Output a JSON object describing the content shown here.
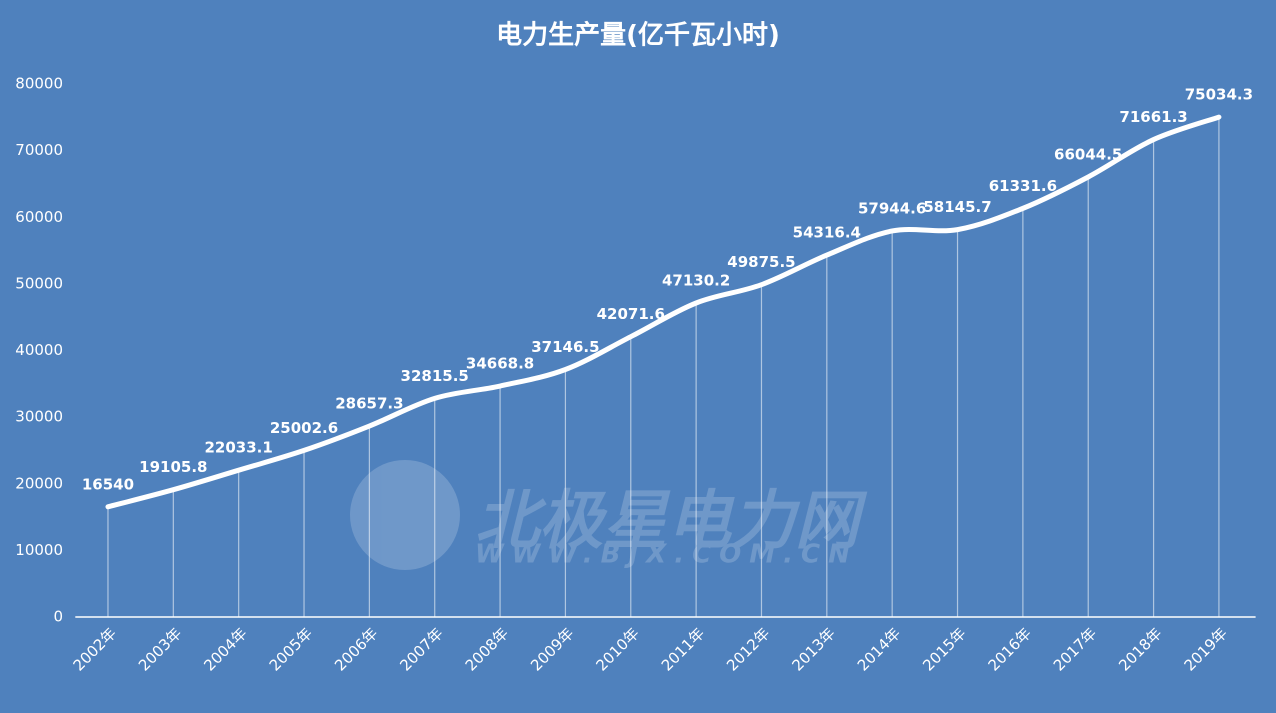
{
  "chart_data": {
    "type": "line",
    "title": "电力生产量(亿千瓦小时)",
    "watermark": "北极星电力网",
    "watermark_url": "WWW.BJX.COM.CN",
    "categories": [
      "2002年",
      "2003年",
      "2004年",
      "2005年",
      "2006年",
      "2007年",
      "2008年",
      "2009年",
      "2010年",
      "2011年",
      "2012年",
      "2013年",
      "2014年",
      "2015年",
      "2016年",
      "2017年",
      "2018年",
      "2019年"
    ],
    "series": [
      {
        "name": "电力生产量",
        "color": "#ffffff",
        "values": [
          16540,
          19105.8,
          22033.1,
          25002.6,
          28657.3,
          32815.5,
          34668.8,
          37146.5,
          42071.6,
          47130.2,
          49875.5,
          54316.4,
          57944.6,
          58145.7,
          61331.6,
          66044.5,
          71661.3,
          75034.3
        ]
      }
    ],
    "ylim": [
      0,
      80000
    ],
    "yticks": [
      0,
      10000,
      20000,
      30000,
      40000,
      50000,
      60000,
      70000,
      80000
    ],
    "drop_lines": true,
    "smooth": true
  }
}
